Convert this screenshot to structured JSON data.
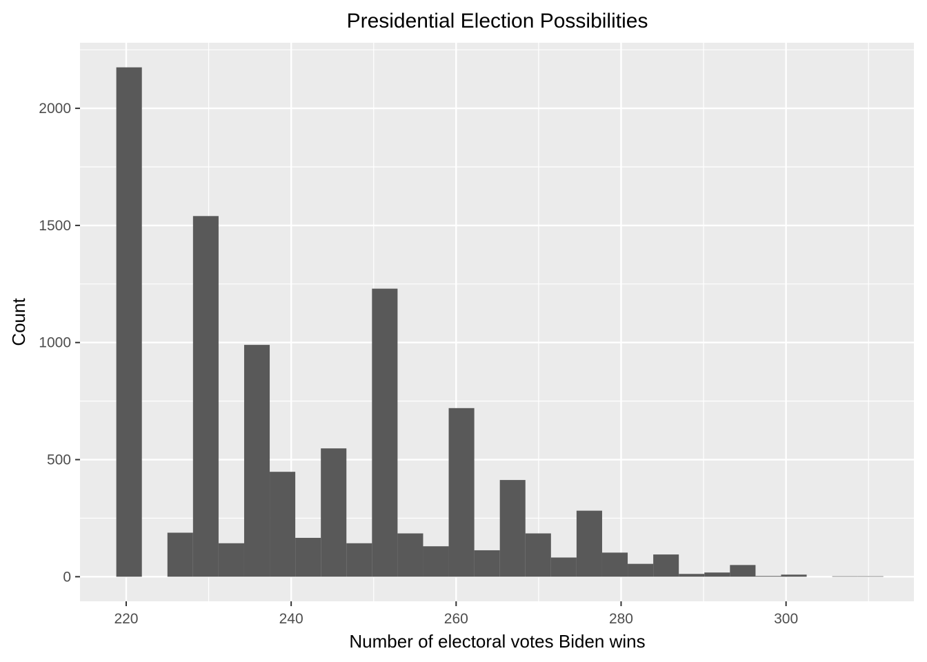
{
  "chart_data": {
    "type": "bar",
    "title": "Presidential Election Possibilities",
    "xlabel": "Number of electoral votes Biden wins",
    "ylabel": "Count",
    "xlim": [
      214.4,
      315.5
    ],
    "ylim": [
      -105,
      2280
    ],
    "x_ticks": [
      220,
      240,
      260,
      280,
      300
    ],
    "y_ticks": [
      0,
      500,
      1000,
      1500,
      2000
    ],
    "x_tick_labels": [
      "220",
      "240",
      "260",
      "280",
      "300"
    ],
    "y_tick_labels": [
      "0",
      "500",
      "1000",
      "1500",
      "2000"
    ],
    "grid": true,
    "bin_width": 3.1,
    "bar_color": "#595959",
    "panel_color": "#ebebeb",
    "bins": [
      {
        "x0": 218.8,
        "x1": 221.9,
        "count": 2175
      },
      {
        "x0": 221.9,
        "x1": 225.0,
        "count": 0
      },
      {
        "x0": 225.0,
        "x1": 228.1,
        "count": 188
      },
      {
        "x0": 228.1,
        "x1": 231.2,
        "count": 1540
      },
      {
        "x0": 231.2,
        "x1": 234.3,
        "count": 143
      },
      {
        "x0": 234.3,
        "x1": 237.4,
        "count": 990
      },
      {
        "x0": 237.4,
        "x1": 240.5,
        "count": 448
      },
      {
        "x0": 240.5,
        "x1": 243.6,
        "count": 166
      },
      {
        "x0": 243.6,
        "x1": 246.7,
        "count": 548
      },
      {
        "x0": 246.7,
        "x1": 249.8,
        "count": 143
      },
      {
        "x0": 249.8,
        "x1": 252.9,
        "count": 1230
      },
      {
        "x0": 252.9,
        "x1": 256.0,
        "count": 185
      },
      {
        "x0": 256.0,
        "x1": 259.1,
        "count": 130
      },
      {
        "x0": 259.1,
        "x1": 262.2,
        "count": 720
      },
      {
        "x0": 262.2,
        "x1": 265.3,
        "count": 113
      },
      {
        "x0": 265.3,
        "x1": 268.4,
        "count": 413
      },
      {
        "x0": 268.4,
        "x1": 271.5,
        "count": 185
      },
      {
        "x0": 271.5,
        "x1": 274.6,
        "count": 82
      },
      {
        "x0": 274.6,
        "x1": 277.7,
        "count": 282
      },
      {
        "x0": 277.7,
        "x1": 280.8,
        "count": 103
      },
      {
        "x0": 280.8,
        "x1": 283.9,
        "count": 55
      },
      {
        "x0": 283.9,
        "x1": 287.0,
        "count": 95
      },
      {
        "x0": 287.0,
        "x1": 290.1,
        "count": 12
      },
      {
        "x0": 290.1,
        "x1": 293.2,
        "count": 18
      },
      {
        "x0": 293.2,
        "x1": 296.3,
        "count": 50
      },
      {
        "x0": 296.3,
        "x1": 299.4,
        "count": 3
      },
      {
        "x0": 299.4,
        "x1": 302.5,
        "count": 9
      },
      {
        "x0": 302.5,
        "x1": 305.6,
        "count": 0
      },
      {
        "x0": 305.6,
        "x1": 308.7,
        "count": 2
      },
      {
        "x0": 308.7,
        "x1": 311.8,
        "count": 2
      }
    ]
  }
}
